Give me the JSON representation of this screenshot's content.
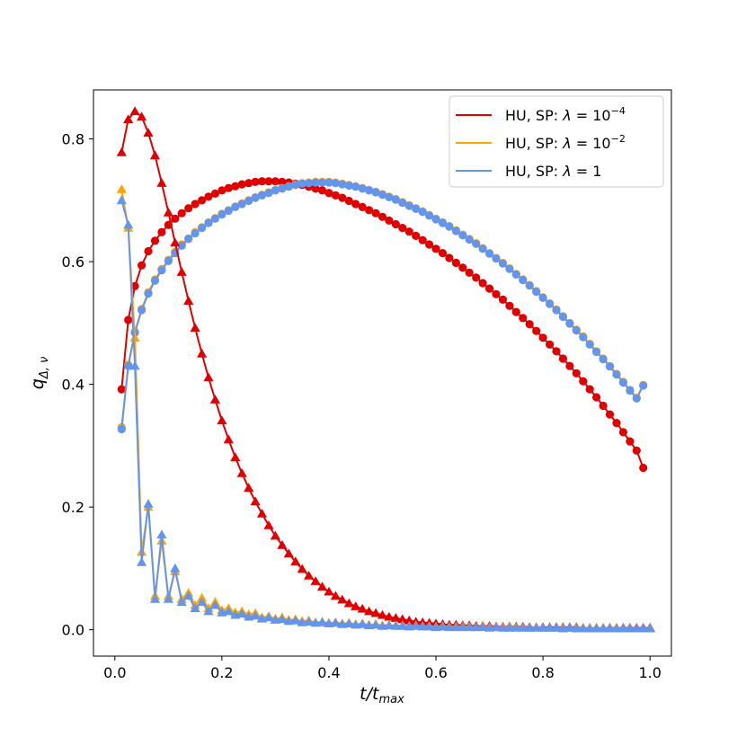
{
  "chart_data": {
    "type": "line",
    "xlabel": "t/t",
    "xlabel_sub": "max",
    "ylabel": "q",
    "ylabel_sub": "Δ, ν",
    "xlim": [
      -0.04,
      1.04
    ],
    "ylim": [
      -0.043,
      0.88
    ],
    "xticks": [
      0.0,
      0.2,
      0.4,
      0.6,
      0.8,
      1.0
    ],
    "xtick_labels": [
      "0.0",
      "0.2",
      "0.4",
      "0.6",
      "0.8",
      "1.0"
    ],
    "yticks": [
      0.0,
      0.2,
      0.4,
      0.6,
      0.8
    ],
    "ytick_labels": [
      "0.0",
      "0.2",
      "0.4",
      "0.6",
      "0.8"
    ],
    "grid": false,
    "legend_position": "top-right",
    "legend": [
      {
        "prefix": "HU, SP: ",
        "lambda": "λ",
        "eq": " = ",
        "base": "10",
        "exp": "−4",
        "color": "#e00000"
      },
      {
        "prefix": "HU, SP: ",
        "lambda": "λ",
        "eq": " = ",
        "base": "10",
        "exp": "−2",
        "color": "#ffa500"
      },
      {
        "prefix": "HU, SP: ",
        "lambda": "λ",
        "eq": " = ",
        "base": "1",
        "exp": "",
        "color": "#6495ed"
      }
    ],
    "series": [
      {
        "color": "#e00000",
        "marker": "circle",
        "x": [
          0.0125,
          0.025,
          0.0375,
          0.05,
          0.0625,
          0.075,
          0.0875,
          0.1,
          0.1125,
          0.125,
          0.1375,
          0.15,
          0.1625,
          0.175,
          0.1875,
          0.2,
          0.2125,
          0.225,
          0.2375,
          0.25,
          0.2625,
          0.275,
          0.2875,
          0.3,
          0.3125,
          0.325,
          0.3375,
          0.35,
          0.3625,
          0.375,
          0.3875,
          0.4,
          0.4125,
          0.425,
          0.4375,
          0.45,
          0.4625,
          0.475,
          0.4875,
          0.5,
          0.5125,
          0.525,
          0.5375,
          0.55,
          0.5625,
          0.575,
          0.5875,
          0.6,
          0.6125,
          0.625,
          0.6375,
          0.65,
          0.6625,
          0.675,
          0.6875,
          0.7,
          0.7125,
          0.725,
          0.7375,
          0.75,
          0.7625,
          0.775,
          0.7875,
          0.8,
          0.8125,
          0.825,
          0.8375,
          0.85,
          0.8625,
          0.875,
          0.8875,
          0.9,
          0.9125,
          0.925,
          0.9375,
          0.95,
          0.9625,
          0.975,
          0.9875
        ],
        "y": [
          0.392,
          0.505,
          0.56,
          0.594,
          0.617,
          0.634,
          0.648,
          0.66,
          0.67,
          0.679,
          0.687,
          0.694,
          0.7,
          0.706,
          0.711,
          0.716,
          0.72,
          0.723,
          0.726,
          0.728,
          0.73,
          0.731,
          0.731,
          0.731,
          0.73,
          0.729,
          0.727,
          0.725,
          0.722,
          0.719,
          0.716,
          0.712,
          0.708,
          0.704,
          0.699,
          0.694,
          0.689,
          0.684,
          0.679,
          0.673,
          0.667,
          0.661,
          0.655,
          0.649,
          0.642,
          0.635,
          0.628,
          0.621,
          0.614,
          0.606,
          0.598,
          0.59,
          0.582,
          0.574,
          0.565,
          0.556,
          0.547,
          0.538,
          0.528,
          0.518,
          0.508,
          0.498,
          0.487,
          0.476,
          0.465,
          0.454,
          0.442,
          0.43,
          0.418,
          0.405,
          0.392,
          0.379,
          0.365,
          0.351,
          0.337,
          0.322,
          0.307,
          0.292,
          0.264
        ]
      },
      {
        "color": "#ffa500",
        "marker": "circle",
        "x": [
          0.0125,
          0.025,
          0.0375,
          0.05,
          0.0625,
          0.075,
          0.0875,
          0.1,
          0.1125,
          0.125,
          0.1375,
          0.15,
          0.1625,
          0.175,
          0.1875,
          0.2,
          0.2125,
          0.225,
          0.2375,
          0.25,
          0.2625,
          0.275,
          0.2875,
          0.3,
          0.3125,
          0.325,
          0.3375,
          0.35,
          0.3625,
          0.375,
          0.3875,
          0.4,
          0.4125,
          0.425,
          0.4375,
          0.45,
          0.4625,
          0.475,
          0.4875,
          0.5,
          0.5125,
          0.525,
          0.5375,
          0.55,
          0.5625,
          0.575,
          0.5875,
          0.6,
          0.6125,
          0.625,
          0.6375,
          0.65,
          0.6625,
          0.675,
          0.6875,
          0.7,
          0.7125,
          0.725,
          0.7375,
          0.75,
          0.7625,
          0.775,
          0.7875,
          0.8,
          0.8125,
          0.825,
          0.8375,
          0.85,
          0.8625,
          0.875,
          0.8875,
          0.9,
          0.9125,
          0.925,
          0.9375,
          0.95,
          0.9625,
          0.975,
          0.9875
        ],
        "y": [
          0.33,
          0.432,
          0.486,
          0.523,
          0.55,
          0.571,
          0.588,
          0.603,
          0.616,
          0.628,
          0.638,
          0.648,
          0.656,
          0.664,
          0.671,
          0.678,
          0.684,
          0.69,
          0.695,
          0.7,
          0.705,
          0.709,
          0.713,
          0.717,
          0.72,
          0.723,
          0.726,
          0.728,
          0.729,
          0.73,
          0.73,
          0.73,
          0.729,
          0.727,
          0.725,
          0.723,
          0.72,
          0.717,
          0.714,
          0.71,
          0.706,
          0.702,
          0.697,
          0.692,
          0.687,
          0.682,
          0.676,
          0.67,
          0.664,
          0.658,
          0.651,
          0.644,
          0.637,
          0.63,
          0.622,
          0.614,
          0.606,
          0.598,
          0.589,
          0.58,
          0.571,
          0.562,
          0.552,
          0.542,
          0.532,
          0.522,
          0.511,
          0.5,
          0.489,
          0.478,
          0.466,
          0.454,
          0.442,
          0.43,
          0.417,
          0.404,
          0.391,
          0.378,
          0.399
        ]
      },
      {
        "color": "#6495ed",
        "marker": "circle",
        "x": [
          0.0125,
          0.025,
          0.0375,
          0.05,
          0.0625,
          0.075,
          0.0875,
          0.1,
          0.1125,
          0.125,
          0.1375,
          0.15,
          0.1625,
          0.175,
          0.1875,
          0.2,
          0.2125,
          0.225,
          0.2375,
          0.25,
          0.2625,
          0.275,
          0.2875,
          0.3,
          0.3125,
          0.325,
          0.3375,
          0.35,
          0.3625,
          0.375,
          0.3875,
          0.4,
          0.4125,
          0.425,
          0.4375,
          0.45,
          0.4625,
          0.475,
          0.4875,
          0.5,
          0.5125,
          0.525,
          0.5375,
          0.55,
          0.5625,
          0.575,
          0.5875,
          0.6,
          0.6125,
          0.625,
          0.6375,
          0.65,
          0.6625,
          0.675,
          0.6875,
          0.7,
          0.7125,
          0.725,
          0.7375,
          0.75,
          0.7625,
          0.775,
          0.7875,
          0.8,
          0.8125,
          0.825,
          0.8375,
          0.85,
          0.8625,
          0.875,
          0.8875,
          0.9,
          0.9125,
          0.925,
          0.9375,
          0.95,
          0.9625,
          0.975,
          0.9875
        ],
        "y": [
          0.327,
          0.43,
          0.484,
          0.521,
          0.548,
          0.569,
          0.586,
          0.601,
          0.614,
          0.626,
          0.637,
          0.646,
          0.655,
          0.663,
          0.67,
          0.677,
          0.683,
          0.689,
          0.694,
          0.699,
          0.704,
          0.708,
          0.712,
          0.716,
          0.719,
          0.722,
          0.725,
          0.727,
          0.728,
          0.729,
          0.729,
          0.729,
          0.728,
          0.726,
          0.724,
          0.722,
          0.719,
          0.716,
          0.713,
          0.709,
          0.705,
          0.701,
          0.696,
          0.691,
          0.686,
          0.681,
          0.675,
          0.669,
          0.663,
          0.657,
          0.65,
          0.643,
          0.636,
          0.629,
          0.621,
          0.613,
          0.605,
          0.597,
          0.588,
          0.579,
          0.57,
          0.561,
          0.551,
          0.541,
          0.531,
          0.521,
          0.51,
          0.499,
          0.488,
          0.477,
          0.465,
          0.453,
          0.441,
          0.429,
          0.416,
          0.403,
          0.39,
          0.377,
          0.398
        ]
      },
      {
        "color": "#e00000",
        "marker": "triangle",
        "x": [
          0.0125,
          0.025,
          0.0375,
          0.05,
          0.0625,
          0.075,
          0.0875,
          0.1,
          0.1125,
          0.125,
          0.1375,
          0.15,
          0.1625,
          0.175,
          0.1875,
          0.2,
          0.2125,
          0.225,
          0.2375,
          0.25,
          0.2625,
          0.275,
          0.2875,
          0.3,
          0.3125,
          0.325,
          0.3375,
          0.35,
          0.3625,
          0.375,
          0.3875,
          0.4,
          0.4125,
          0.425,
          0.4375,
          0.45,
          0.4625,
          0.475,
          0.4875,
          0.5,
          0.5125,
          0.525,
          0.5375,
          0.55,
          0.5625,
          0.575,
          0.5875,
          0.6,
          0.6125,
          0.625,
          0.6375,
          0.65,
          0.6625,
          0.675,
          0.6875,
          0.7,
          0.7125,
          0.725,
          0.7375,
          0.75,
          0.7625,
          0.775,
          0.7875,
          0.8,
          0.8125,
          0.825,
          0.8375,
          0.85,
          0.8625,
          0.875,
          0.8875,
          0.9,
          0.9125,
          0.925,
          0.9375,
          0.95,
          0.9625,
          0.975,
          0.9875,
          1.0
        ],
        "y": [
          0.778,
          0.832,
          0.845,
          0.836,
          0.81,
          0.773,
          0.728,
          0.68,
          0.631,
          0.583,
          0.536,
          0.492,
          0.45,
          0.411,
          0.375,
          0.341,
          0.31,
          0.281,
          0.255,
          0.231,
          0.209,
          0.189,
          0.17,
          0.153,
          0.138,
          0.124,
          0.111,
          0.099,
          0.088,
          0.079,
          0.07,
          0.062,
          0.055,
          0.049,
          0.043,
          0.038,
          0.034,
          0.03,
          0.027,
          0.024,
          0.021,
          0.019,
          0.017,
          0.015,
          0.013,
          0.012,
          0.011,
          0.01,
          0.009,
          0.008,
          0.008,
          0.007,
          0.007,
          0.006,
          0.006,
          0.006,
          0.005,
          0.005,
          0.005,
          0.005,
          0.005,
          0.004,
          0.004,
          0.004,
          0.004,
          0.004,
          0.004,
          0.004,
          0.004,
          0.003,
          0.003,
          0.003,
          0.003,
          0.003,
          0.003,
          0.003,
          0.003,
          0.003,
          0.003,
          0.003
        ]
      },
      {
        "color": "#ffa500",
        "marker": "triangle",
        "x": [
          0.0125,
          0.025,
          0.0375,
          0.05,
          0.0625,
          0.075,
          0.0875,
          0.1,
          0.1125,
          0.125,
          0.1375,
          0.15,
          0.1625,
          0.175,
          0.1875,
          0.2,
          0.2125,
          0.225,
          0.2375,
          0.25,
          0.2625,
          0.275,
          0.2875,
          0.3,
          0.3125,
          0.325,
          0.3375,
          0.35,
          0.3625,
          0.375,
          0.3875,
          0.4,
          0.4125,
          0.425,
          0.4375,
          0.45,
          0.4625,
          0.475,
          0.4875,
          0.5,
          0.5125,
          0.525,
          0.5375,
          0.55,
          0.5625,
          0.575,
          0.5875,
          0.6,
          0.6125,
          0.625,
          0.6375,
          0.65,
          0.6625,
          0.675,
          0.6875,
          0.7,
          0.7125,
          0.725,
          0.7375,
          0.75,
          0.7625,
          0.775,
          0.7875,
          0.8,
          0.8125,
          0.825,
          0.8375,
          0.85,
          0.8625,
          0.875,
          0.8875,
          0.9,
          0.9125,
          0.925,
          0.9375,
          0.95,
          0.9625,
          0.975,
          0.9875,
          1.0
        ],
        "y": [
          0.718,
          0.655,
          0.476,
          0.127,
          0.2,
          0.055,
          0.145,
          0.055,
          0.095,
          0.05,
          0.06,
          0.04,
          0.052,
          0.035,
          0.045,
          0.032,
          0.035,
          0.028,
          0.03,
          0.025,
          0.027,
          0.02,
          0.022,
          0.018,
          0.02,
          0.016,
          0.017,
          0.014,
          0.015,
          0.012,
          0.013,
          0.011,
          0.012,
          0.01,
          0.011,
          0.009,
          0.01,
          0.008,
          0.009,
          0.007,
          0.008,
          0.007,
          0.007,
          0.006,
          0.007,
          0.006,
          0.006,
          0.005,
          0.006,
          0.005,
          0.005,
          0.005,
          0.005,
          0.004,
          0.005,
          0.004,
          0.004,
          0.004,
          0.004,
          0.004,
          0.004,
          0.003,
          0.004,
          0.003,
          0.003,
          0.003,
          0.003,
          0.003,
          0.003,
          0.003,
          0.003,
          0.003,
          0.003,
          0.002,
          0.003,
          0.002,
          0.002,
          0.002,
          0.002,
          0.002
        ]
      },
      {
        "color": "#6495ed",
        "marker": "triangle",
        "x": [
          0.0125,
          0.025,
          0.0375,
          0.05,
          0.0625,
          0.075,
          0.0875,
          0.1,
          0.1125,
          0.125,
          0.1375,
          0.15,
          0.1625,
          0.175,
          0.1875,
          0.2,
          0.2125,
          0.225,
          0.2375,
          0.25,
          0.2625,
          0.275,
          0.2875,
          0.3,
          0.3125,
          0.325,
          0.3375,
          0.35,
          0.3625,
          0.375,
          0.3875,
          0.4,
          0.4125,
          0.425,
          0.4375,
          0.45,
          0.4625,
          0.475,
          0.4875,
          0.5,
          0.5125,
          0.525,
          0.5375,
          0.55,
          0.5625,
          0.575,
          0.5875,
          0.6,
          0.6125,
          0.625,
          0.6375,
          0.65,
          0.6625,
          0.675,
          0.6875,
          0.7,
          0.7125,
          0.725,
          0.7375,
          0.75,
          0.7625,
          0.775,
          0.7875,
          0.8,
          0.8125,
          0.825,
          0.8375,
          0.85,
          0.8625,
          0.875,
          0.8875,
          0.9,
          0.9125,
          0.925,
          0.9375,
          0.95,
          0.9625,
          0.975,
          0.9875,
          1.0
        ],
        "y": [
          0.7,
          0.66,
          0.43,
          0.11,
          0.205,
          0.05,
          0.155,
          0.05,
          0.1,
          0.045,
          0.055,
          0.035,
          0.045,
          0.03,
          0.04,
          0.028,
          0.03,
          0.024,
          0.026,
          0.021,
          0.023,
          0.018,
          0.02,
          0.016,
          0.017,
          0.014,
          0.015,
          0.012,
          0.013,
          0.011,
          0.012,
          0.01,
          0.011,
          0.009,
          0.01,
          0.008,
          0.009,
          0.007,
          0.008,
          0.006,
          0.007,
          0.006,
          0.006,
          0.005,
          0.006,
          0.005,
          0.005,
          0.004,
          0.005,
          0.004,
          0.004,
          0.004,
          0.004,
          0.004,
          0.004,
          0.003,
          0.004,
          0.003,
          0.003,
          0.003,
          0.003,
          0.003,
          0.003,
          0.003,
          0.003,
          0.003,
          0.002,
          0.003,
          0.002,
          0.002,
          0.002,
          0.002,
          0.002,
          0.002,
          0.002,
          0.002,
          0.002,
          0.002,
          0.002,
          0.002
        ]
      }
    ]
  }
}
